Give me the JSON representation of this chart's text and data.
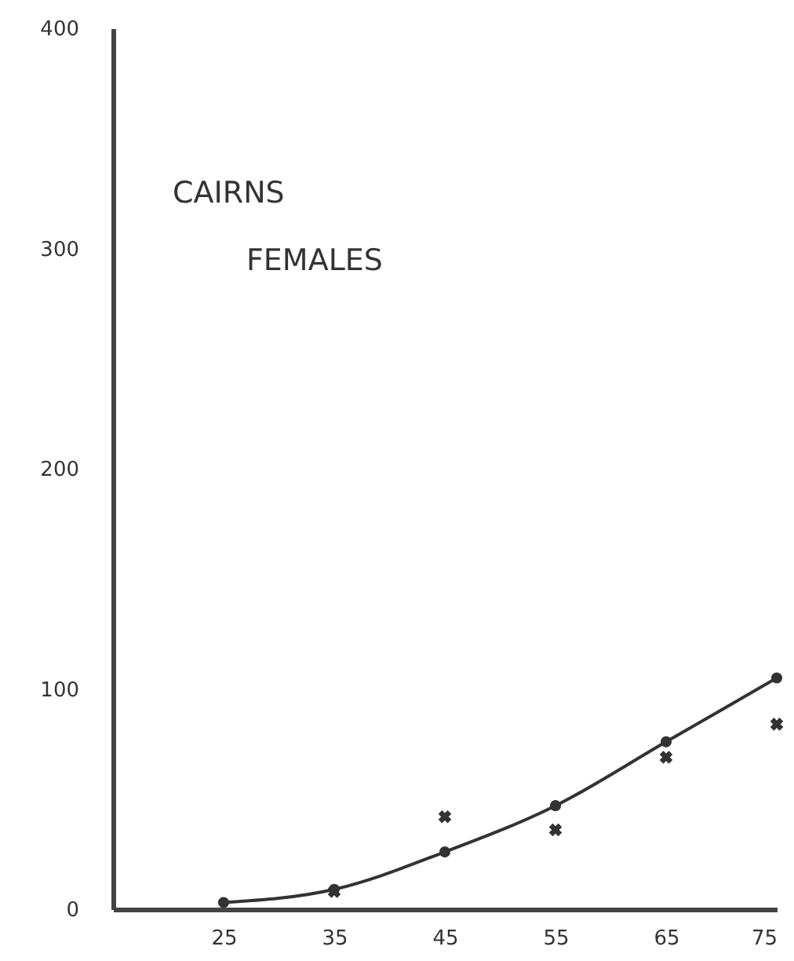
{
  "chart_data": {
    "type": "line",
    "title": "CAIRNS",
    "subtitle": "FEMALES",
    "xlim": [
      15,
      75
    ],
    "xticks": [
      25,
      35,
      45,
      55,
      65,
      75
    ],
    "ylim": [
      0,
      400
    ],
    "yticks": [
      0,
      100,
      200,
      300,
      400
    ],
    "grid": false,
    "series": [
      {
        "type": "line",
        "marker": "circle",
        "color": "#333333",
        "x": [
          25,
          35,
          45,
          55,
          65,
          75
        ],
        "values": [
          3,
          9,
          26,
          47,
          76,
          105
        ]
      },
      {
        "type": "scatter",
        "marker": "cross",
        "color": "#333333",
        "x": [
          35,
          45,
          55,
          65,
          75
        ],
        "values": [
          8,
          42,
          36,
          69,
          84
        ]
      }
    ]
  }
}
